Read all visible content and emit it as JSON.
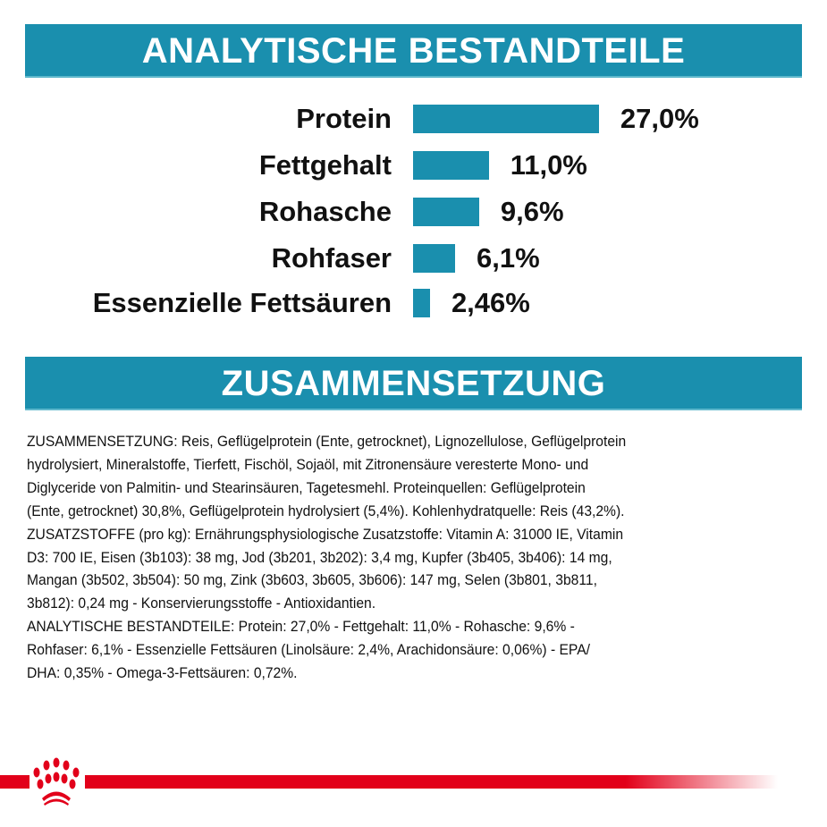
{
  "header1": "ANALYTISCHE BESTANDTEILE",
  "header2": "ZUSAMMENSETZUNG",
  "chart_data": {
    "type": "bar",
    "orientation": "horizontal",
    "categories": [
      "Protein",
      "Fettgehalt",
      "Rohasche",
      "Rohfaser",
      "Essenzielle Fettsäuren"
    ],
    "values": [
      27.0,
      11.0,
      9.6,
      6.1,
      2.46
    ],
    "data_labels": [
      "27,0%",
      "11,0%",
      "9,6%",
      "6,1%",
      "2,46%"
    ],
    "unit": "%",
    "bar_color": "#1a8fae",
    "grid": false
  },
  "composition_lines": [
    "ZUSAMMENSETZUNG: Reis, Geflügelprotein (Ente, getrocknet), Lignozellulose, Geflügelprotein",
    "hydrolysiert, Mineralstoffe, Tierfett, Fischöl, Sojaöl, mit Zitronensäure veresterte Mono- und",
    "Diglyceride von Palmitin- und Stearinsäuren, Tagetesmehl. Proteinquellen: Geflügelprotein",
    "(Ente, getrocknet) 30,8%, Geflügelprotein hydrolysiert (5,4%). Kohlenhydratquelle: Reis (43,2%).",
    "ZUSATZSTOFFE (pro kg): Ernährungsphysiologische Zusatzstoffe: Vitamin A: 31000 IE, Vitamin",
    "D3: 700 IE, Eisen (3b103): 38 mg, Jod (3b201, 3b202): 3,4 mg, Kupfer (3b405, 3b406): 14 mg,",
    "Mangan (3b502, 3b504): 50 mg, Zink (3b603, 3b605, 3b606): 147 mg, Selen (3b801, 3b811,",
    "3b812): 0,24 mg - Konservierungsstoffe - Antioxidantien.",
    "ANALYTISCHE BESTANDTEILE: Protein: 27,0% - Fettgehalt: 11,0% - Rohasche: 9,6% -",
    "Rohfaser: 6,1% - Essenzielle Fettsäuren (Linolsäure: 2,4%, Arachidonsäure: 0,06%) - EPA/",
    "DHA: 0,35% - Omega-3-Fettsäuren: 0,72%."
  ],
  "colors": {
    "accent": "#1a8fae",
    "brand_red": "#e2001a"
  },
  "logo": "royal-canin-crown-paw"
}
